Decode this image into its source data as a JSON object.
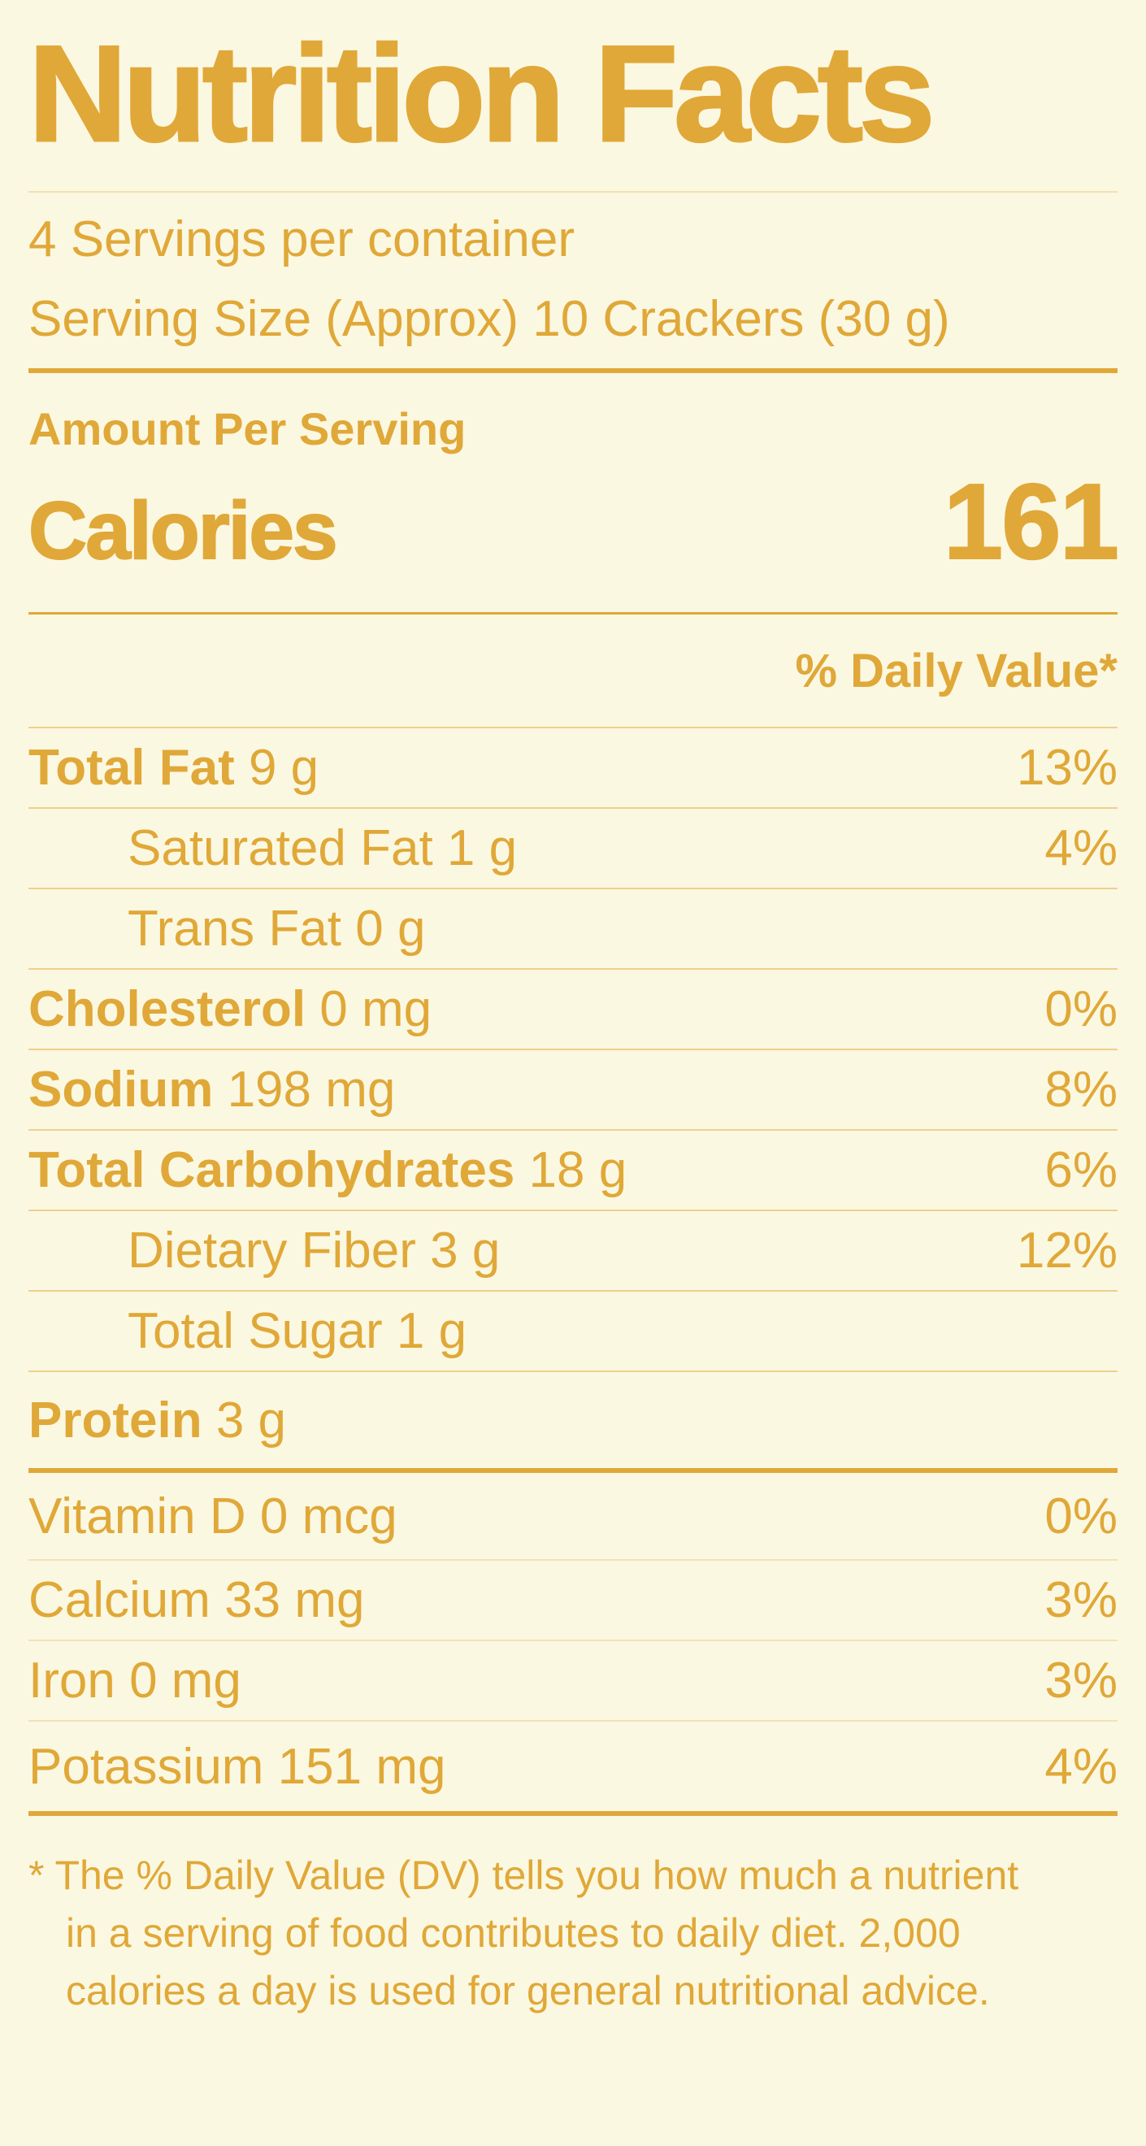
{
  "title": "Nutrition Facts",
  "servings_per_container": "4 Servings per container",
  "serving_size": "Serving Size (Approx) 10 Crackers (30 g)",
  "amount_per_serving": "Amount Per Serving",
  "calories_label": "Calories",
  "calories_value": "161",
  "daily_value_header": "% Daily Value*",
  "nutrients": [
    {
      "name": "Total Fat",
      "amount": "9 g",
      "dv": "13%",
      "bold": true,
      "indent": false
    },
    {
      "name": "Saturated Fat",
      "amount": "1 g",
      "dv": "4%",
      "bold": false,
      "indent": true
    },
    {
      "name": "Trans Fat",
      "amount": "0 g",
      "dv": "",
      "bold": false,
      "indent": true
    },
    {
      "name": "Cholesterol",
      "amount": "0 mg",
      "dv": "0%",
      "bold": true,
      "indent": false
    },
    {
      "name": "Sodium",
      "amount": "198 mg",
      "dv": "8%",
      "bold": true,
      "indent": false
    },
    {
      "name": "Total Carbohydrates",
      "amount": "18 g",
      "dv": "6%",
      "bold": true,
      "indent": false
    },
    {
      "name": "Dietary Fiber",
      "amount": "3 g",
      "dv": "12%",
      "bold": false,
      "indent": true
    },
    {
      "name": "Total Sugar",
      "amount": "1 g",
      "dv": "",
      "bold": false,
      "indent": true
    },
    {
      "name": "Protein",
      "amount": "3 g",
      "dv": "",
      "bold": true,
      "indent": false
    }
  ],
  "micronutrients": [
    {
      "name": "Vitamin D",
      "amount": "0 mcg",
      "dv": "0%"
    },
    {
      "name": "Calcium",
      "amount": "33 mg",
      "dv": "3%"
    },
    {
      "name": "Iron",
      "amount": "0 mg",
      "dv": "3%"
    },
    {
      "name": "Potassium",
      "amount": "151 mg",
      "dv": "4%"
    }
  ],
  "footnote_lines": [
    "* The % Daily Value (DV) tells you how much a nutrient",
    "in a serving of food contributes to daily diet. 2,000",
    "calories a day is used for general nutritional advice."
  ],
  "colors": {
    "accent_gold": "#E0A838",
    "background_cream": "#FBF8E2"
  }
}
